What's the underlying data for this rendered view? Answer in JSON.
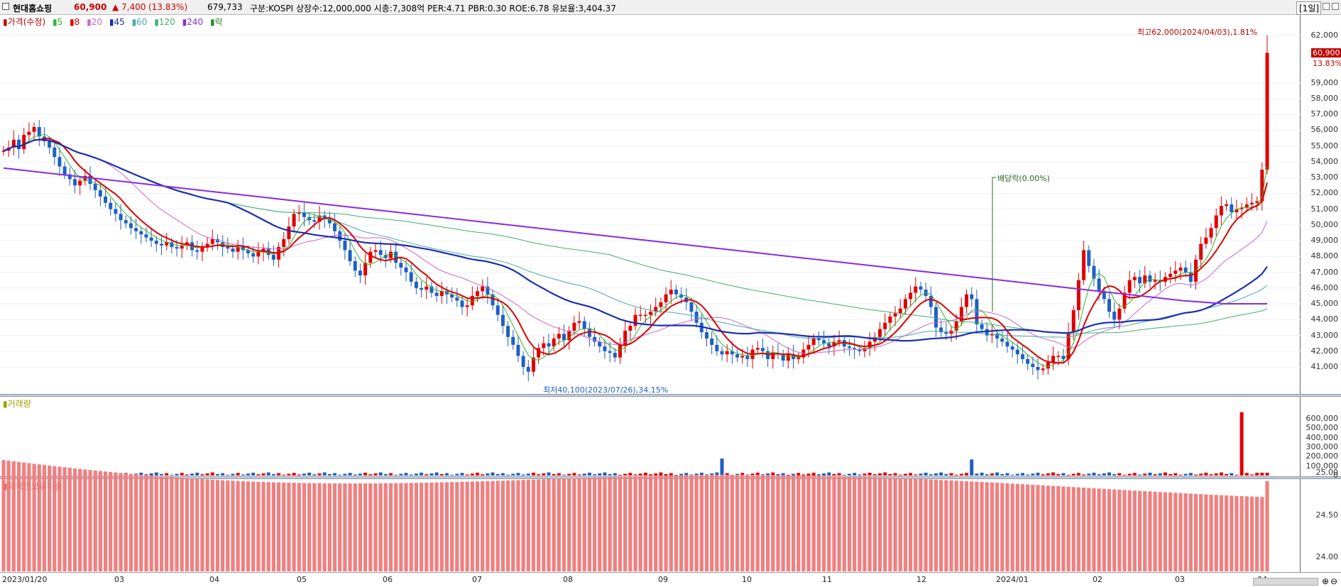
{
  "header": {
    "stock_name": "현대홈쇼핑",
    "price": "60,900",
    "change": "▲ 7,400",
    "change_pct": "(13.83%)",
    "volume": "679,733",
    "info": "구분:KOSPI  상장수:12,000,000  시총:7,308억  PER:4.71  PBR:0.30  ROE:6.78  유보율:3,404.37",
    "period": "[1일]"
  },
  "legend": {
    "price": "가격(수정)",
    "ma": [
      "5",
      "8",
      "20",
      "45",
      "60",
      "120",
      "240"
    ],
    "ex": "락"
  },
  "volume_legend": "거래량",
  "foreign_legend": "외국인보유비중",
  "annotations": {
    "high": "최고62,000(2024/04/03),1.81%",
    "low": "최저40,100(2023/07/26),34.15%",
    "dividend": "배당락(0.00%)",
    "last_price": "60,900",
    "last_pct": "13.83%"
  },
  "price_axis": [
    "62,000",
    "59,000",
    "58,000",
    "57,000",
    "56,000",
    "55,000",
    "54,000",
    "53,000",
    "52,000",
    "51,000",
    "50,000",
    "49,000",
    "48,000",
    "47,000",
    "46,000",
    "45,000",
    "44,000",
    "43,000",
    "42,000",
    "41,000"
  ],
  "volume_axis": [
    "600,000",
    "500,000",
    "400,000",
    "300,000",
    "200,000",
    "100,000",
    "0"
  ],
  "foreign_axis": [
    "25.00",
    "24.50",
    "24.00"
  ],
  "x_axis": [
    "2023/01/20",
    "03",
    "04",
    "05",
    "06",
    "07",
    "08",
    "09",
    "10",
    "11",
    "12",
    "2024/01",
    "02",
    "03",
    "04"
  ],
  "colors": {
    "up": "#e00000",
    "down": "#1f5fc4",
    "ma5": "#2db82d",
    "ma8": "#e00000",
    "ma20": "#cc66cc",
    "ma45": "#1a2fb0",
    "ma60": "#4aa8a8",
    "ma120": "#3fb06e",
    "ma240": "#8a2be2",
    "foreign": "#f08080"
  },
  "chart_data": {
    "type": "candlestick",
    "title": "현대홈쇼핑",
    "ylim": [
      40000,
      62500
    ],
    "closes": [
      54700,
      54900,
      55400,
      54800,
      55700,
      55900,
      56200,
      55600,
      55300,
      54900,
      54300,
      53700,
      53200,
      52900,
      52500,
      52800,
      53100,
      52600,
      52200,
      51800,
      51400,
      51000,
      50700,
      50300,
      50100,
      49800,
      49600,
      49400,
      49200,
      49000,
      48800,
      48700,
      48900,
      48600,
      48500,
      48700,
      48900,
      48400,
      48300,
      48600,
      48800,
      49100,
      48900,
      48600,
      48500,
      48300,
      48600,
      48400,
      48200,
      48000,
      48300,
      48500,
      48100,
      47800,
      48600,
      49100,
      49900,
      50700,
      50800,
      50500,
      50300,
      50200,
      50600,
      50400,
      50100,
      49600,
      49000,
      48400,
      47700,
      47100,
      46800,
      47600,
      48300,
      48400,
      48100,
      47900,
      48300,
      47600,
      47300,
      47000,
      46400,
      46000,
      45900,
      46100,
      45700,
      45500,
      45800,
      45600,
      45400,
      45200,
      44800,
      44900,
      45500,
      45800,
      46100,
      45600,
      44900,
      44300,
      43600,
      42900,
      42400,
      41700,
      41000,
      40700,
      41600,
      42200,
      42500,
      42300,
      42800,
      43100,
      42700,
      43300,
      43800,
      43900,
      43400,
      42900,
      42600,
      42300,
      42000,
      41900,
      41600,
      42400,
      43300,
      43600,
      44300,
      44300,
      44300,
      44500,
      44800,
      45100,
      45600,
      45900,
      45600,
      45400,
      45100,
      44500,
      43800,
      43200,
      42800,
      42400,
      42000,
      41800,
      42000,
      41800,
      41600,
      41700,
      41500,
      42100,
      42200,
      42000,
      41500,
      41900,
      41800,
      41400,
      41800,
      41500,
      41600,
      42100,
      42400,
      42800,
      42700,
      42500,
      42300,
      42600,
      42700,
      42300,
      42200,
      42100,
      42000,
      42200,
      42600,
      42900,
      43400,
      43800,
      44200,
      44400,
      44700,
      45300,
      45700,
      46100,
      45900,
      45500,
      44800,
      43500,
      43200,
      43100,
      43300,
      43900,
      44800,
      45600,
      45300,
      43700,
      43400,
      43000,
      43100,
      42800,
      42600,
      42300,
      42100,
      41800,
      41500,
      41200,
      41000,
      40800,
      40900,
      41300,
      41700,
      41700,
      41500,
      43200,
      44600,
      46500,
      48400,
      47400,
      46600,
      45800,
      45300,
      44500,
      44000,
      44700,
      45700,
      46500,
      46700,
      46300,
      46800,
      46400,
      46500,
      46400,
      46700,
      46900,
      47100,
      47300,
      47000,
      46400,
      47800,
      48800,
      49200,
      49800,
      50600,
      51200,
      51300,
      50800,
      51000,
      51100,
      51300,
      51400,
      51500,
      53500,
      60900
    ],
    "ma_lines": {
      "ma240": [
        53600,
        53300,
        53000,
        52700,
        52400,
        52100,
        51800,
        51500,
        51200,
        50900,
        50600,
        50300,
        50000,
        49700,
        49400,
        49100,
        48800,
        48500,
        48200,
        47900,
        47600,
        47300,
        47000,
        46700,
        46400,
        46100,
        45800,
        45500,
        45200,
        45000,
        45000
      ]
    },
    "volume_spikes": [
      {
        "idx": 141,
        "value": 180000
      },
      {
        "idx": 190,
        "value": 170000
      },
      {
        "idx": 243,
        "value": 670000
      }
    ],
    "foreign_range": [
      23.9,
      25.2
    ]
  }
}
